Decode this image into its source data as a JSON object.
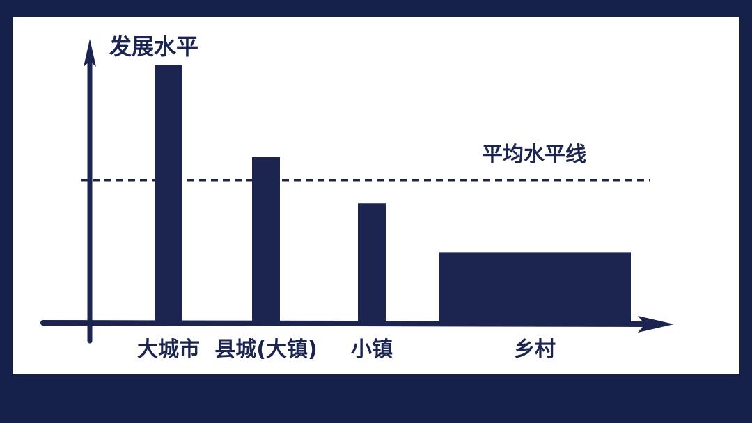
{
  "colors": {
    "frame": "#16214a",
    "panel": "#ffffff",
    "ink": "#1b2550"
  },
  "chart_data": {
    "type": "bar",
    "ylabel": "发展水平",
    "categories": [
      "大城市",
      "县城(大镇)",
      "小镇",
      "乡村"
    ],
    "values": [
      100,
      64,
      46,
      27
    ],
    "reference_line": {
      "label": "平均水平线",
      "value": 55,
      "style": "dashed"
    },
    "ylim": [
      0,
      100
    ],
    "grid": false,
    "tick_labels_y": false,
    "legend": "none"
  }
}
